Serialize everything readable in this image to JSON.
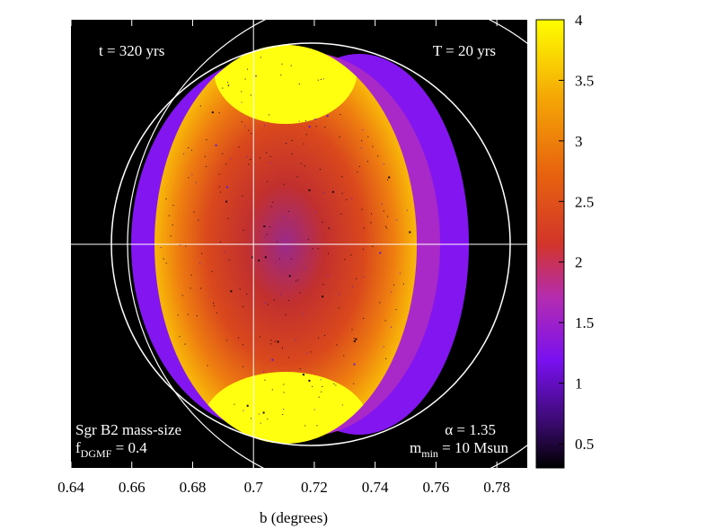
{
  "chart_data": {
    "type": "heatmap",
    "title": "",
    "xlabel": "b (degrees)",
    "ylabel": "",
    "xlim": [
      0.64,
      0.79
    ],
    "x_ticks": [
      {
        "value": 0.64,
        "label": "0.64"
      },
      {
        "value": 0.66,
        "label": "0.66"
      },
      {
        "value": 0.68,
        "label": "0.68"
      },
      {
        "value": 0.7,
        "label": "0.7"
      },
      {
        "value": 0.72,
        "label": "0.72"
      },
      {
        "value": 0.74,
        "label": "0.74"
      },
      {
        "value": 0.76,
        "label": "0.76"
      },
      {
        "value": 0.78,
        "label": "0.78"
      }
    ],
    "colorbar": {
      "min": 0.3,
      "max": 4.0,
      "ticks": [
        {
          "value": 4,
          "label": "4"
        },
        {
          "value": 3.5,
          "label": "3.5"
        },
        {
          "value": 3,
          "label": "3"
        },
        {
          "value": 2.5,
          "label": "2.5"
        },
        {
          "value": 2,
          "label": "2"
        },
        {
          "value": 1.5,
          "label": "1.5"
        },
        {
          "value": 1,
          "label": "1"
        },
        {
          "value": 0.5,
          "label": "0.5"
        }
      ],
      "colors": [
        "#000000",
        "#3a0a6e",
        "#7a10f0",
        "#b42cb0",
        "#d2352a",
        "#e8640e",
        "#f4a406",
        "#ffff00"
      ]
    },
    "background_color": "#000000",
    "crosshair_x": 0.7,
    "annotations": {
      "top_left": "t = 320 yrs",
      "top_right": "T = 20 yrs",
      "bottom_left_1": "Sgr B2 mass-size",
      "bottom_left_2_main": "f",
      "bottom_left_2_sub": "DGMF",
      "bottom_left_2_rest": " = 0.4",
      "bottom_right_1": "α = 1.35",
      "bottom_right_2_main": "m",
      "bottom_right_2_sub": "min",
      "bottom_right_2_rest": " = 10 Msun"
    }
  }
}
